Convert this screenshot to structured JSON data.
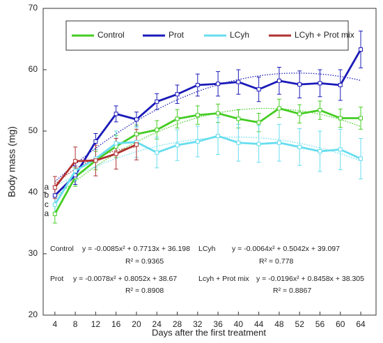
{
  "chart_data": {
    "type": "line",
    "x_label": "Days after the first treatment",
    "y_label": "Body mass (mg)",
    "x": [
      4,
      8,
      12,
      16,
      20,
      24,
      28,
      32,
      36,
      40,
      44,
      48,
      52,
      56,
      60,
      64
    ],
    "xlim": [
      1.7,
      67
    ],
    "xticks": [
      4,
      8,
      12,
      16,
      20,
      24,
      28,
      32,
      36,
      40,
      44,
      48,
      52,
      56,
      60,
      64
    ],
    "ylim": [
      20,
      70
    ],
    "yticks": [
      20,
      30,
      40,
      50,
      60,
      70
    ],
    "grid": false,
    "legend": "top",
    "series": [
      {
        "name": "Control",
        "color": "#44cc22",
        "letter": "a",
        "values": [
          36.5,
          42.5,
          45.2,
          47.5,
          49.5,
          50.2,
          52,
          52.6,
          52.9,
          52,
          51.4,
          53.7,
          52.8,
          53.4,
          52.1,
          52.1
        ],
        "errors": [
          1.5,
          1.5,
          1.5,
          1.8,
          1.5,
          1.5,
          1.5,
          1.5,
          1.5,
          1.5,
          1.5,
          1.5,
          1.5,
          1.5,
          1.5,
          1.8
        ],
        "trend": [
          -0.0085,
          0.7713,
          36.198
        ]
      },
      {
        "name": "Prot",
        "color": "#1a1ab8",
        "letter": "b",
        "values": [
          39.5,
          42.8,
          48.3,
          52.8,
          51.9,
          54.8,
          56,
          57.5,
          57.7,
          58,
          56.8,
          58.2,
          57.6,
          57.8,
          57.5,
          63.3
        ],
        "errors": [
          1.5,
          1.5,
          1.3,
          1.3,
          1.2,
          1.3,
          1.5,
          1.8,
          2,
          2,
          2,
          2.2,
          2.2,
          2.2,
          2.5,
          3
        ],
        "trend": [
          -0.0078,
          0.8052,
          38.67
        ]
      },
      {
        "name": "LCyh",
        "color": "#66ddee",
        "letter": "c",
        "values": [
          38,
          43.5,
          45.5,
          48,
          48.2,
          46.5,
          47.7,
          48.3,
          49.2,
          48.1,
          47.9,
          48.1,
          47.4,
          46.7,
          47,
          45.5
        ],
        "errors": [
          1.5,
          1.5,
          1.5,
          2,
          2.5,
          2.5,
          2.5,
          2.5,
          3,
          3,
          3,
          3,
          3,
          3.3,
          3.3,
          3.3
        ],
        "trend": [
          -0.0064,
          0.5042,
          39.097
        ]
      },
      {
        "name": "LCyh + Prot mix",
        "color": "#b03030",
        "letter": "a",
        "values": [
          40.8,
          45.1,
          45.2,
          46.3,
          47.8,
          null,
          null,
          null,
          null,
          null,
          null,
          null,
          null,
          null,
          null,
          null
        ],
        "errors": [
          1.8,
          2.3,
          2.5,
          2.5,
          2.5,
          null,
          null,
          null,
          null,
          null,
          null,
          null,
          null,
          null,
          null,
          null
        ],
        "trend": [
          -0.0196,
          0.8458,
          38.305
        ]
      }
    ],
    "equations": [
      {
        "name": "Control",
        "equation": "y = -0.0085x² + 0.7713x + 36.198",
        "r2": "R² = 0.9365"
      },
      {
        "name": "LCyh",
        "equation": "y = -0.0064x² + 0.5042x + 39.097",
        "r2": "R² = 0.778"
      },
      {
        "name": "Prot",
        "equation": "y = -0.0078x² + 0.8052x + 38.67",
        "r2": "R² = 0.8908"
      },
      {
        "name": "Lcyh + Prot mix",
        "equation": "y = -0.0196x² + 0.8458x + 38.305",
        "r2": "R² = 0.8867"
      }
    ]
  }
}
